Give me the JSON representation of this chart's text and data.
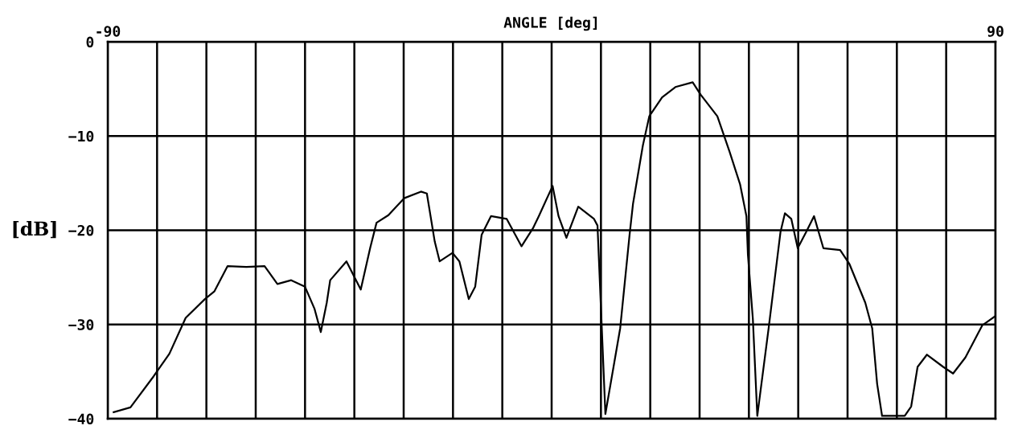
{
  "chart_data": {
    "type": "line",
    "xlabel": "ANGLE [deg]",
    "ylabel": "[dB]",
    "xlim": [
      -90,
      90
    ],
    "ylim": [
      -40,
      0
    ],
    "xticks": [
      -90,
      {
        "value": -80,
        "label": null
      },
      {
        "value": -70,
        "label": null
      },
      {
        "value": -60,
        "label": null
      },
      {
        "value": -50,
        "label": null
      },
      {
        "value": -40,
        "label": null
      },
      {
        "value": -30,
        "label": null
      },
      {
        "value": -20,
        "label": null
      },
      {
        "value": -10,
        "label": null
      },
      {
        "value": 0,
        "label": null
      },
      {
        "value": 10,
        "label": null
      },
      {
        "value": 20,
        "label": null
      },
      {
        "value": 30,
        "label": null
      },
      {
        "value": 40,
        "label": null
      },
      {
        "value": 50,
        "label": null
      },
      {
        "value": 60,
        "label": null
      },
      {
        "value": 70,
        "label": null
      },
      {
        "value": 80,
        "label": null
      },
      90
    ],
    "yticks": [
      0,
      {
        "value": -10,
        "label": "−10"
      },
      {
        "value": -20,
        "label": "−20"
      },
      {
        "value": -30,
        "label": "−30"
      },
      {
        "value": -40,
        "label": "−40"
      }
    ],
    "grid": true,
    "legend": false,
    "marker": "none",
    "line_style": "solid",
    "series": [
      {
        "color": "#000000",
        "x": [
          -88.8,
          -85.4,
          -80.7,
          -77.5,
          -74.2,
          -70.3,
          -68.4,
          -65.7,
          -61.9,
          -58.2,
          -55.6,
          -52.8,
          -50.0,
          -48.1,
          -46.8,
          -45.6,
          -44.9,
          -41.6,
          -38.7,
          -36.8,
          -35.5,
          -33.1,
          -29.9,
          -26.5,
          -25.3,
          -23.7,
          -22.7,
          -20.1,
          -18.7,
          -16.8,
          -15.5,
          -14.2,
          -12.3,
          -9.1,
          -6.1,
          -3.8,
          -2.6,
          0.2,
          1.4,
          3.0,
          5.4,
          8.6,
          9.3,
          10.9,
          13.9,
          15.8,
          16.5,
          18.5,
          19.8,
          22.4,
          25.1,
          28.6,
          30.2,
          33.6,
          36.1,
          38.2,
          39.5,
          39.8,
          40.8,
          41.7,
          44.0,
          46.4,
          47.3,
          48.6,
          49.9,
          51.6,
          53.2,
          55.1,
          58.5,
          60.4,
          63.6,
          65.0,
          66.0,
          67.0,
          71.6,
          72.9,
          74.2,
          76.1,
          79.4,
          81.4,
          83.9,
          87.3,
          90.0
        ],
        "values": [
          -39.3,
          -38.8,
          -35.5,
          -33.1,
          -29.3,
          -27.3,
          -26.5,
          -23.8,
          -23.9,
          -23.8,
          -25.7,
          -25.3,
          -26.0,
          -28.3,
          -30.8,
          -27.7,
          -25.3,
          -23.3,
          -26.3,
          -21.9,
          -19.2,
          -18.4,
          -16.6,
          -15.9,
          -16.1,
          -21.2,
          -23.3,
          -22.4,
          -23.3,
          -27.3,
          -26.0,
          -20.5,
          -18.5,
          -18.8,
          -21.7,
          -19.8,
          -18.5,
          -15.3,
          -18.5,
          -20.8,
          -17.5,
          -18.8,
          -19.5,
          -39.5,
          -30.4,
          -20.5,
          -17.2,
          -11.0,
          -7.9,
          -5.9,
          -4.8,
          -4.3,
          -5.6,
          -7.9,
          -11.7,
          -15.1,
          -18.5,
          -22.6,
          -29.4,
          -39.7,
          -30.4,
          -20.2,
          -18.2,
          -18.8,
          -21.9,
          -20.2,
          -18.5,
          -21.9,
          -22.1,
          -23.6,
          -27.7,
          -30.4,
          -36.3,
          -39.7,
          -39.7,
          -38.7,
          -34.5,
          -33.2,
          -34.5,
          -35.2,
          -33.5,
          -30.1,
          -29.1
        ]
      }
    ]
  }
}
